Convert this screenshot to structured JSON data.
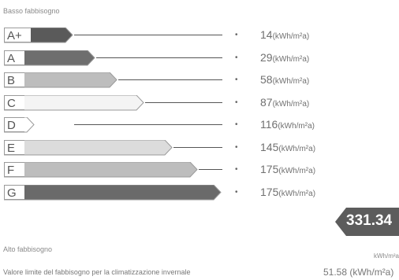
{
  "top_caption": "Basso fabbisogno",
  "bottom_caption": "Alto fabbisogno",
  "classes": [
    {
      "letter": "A+",
      "value": "14",
      "unit": "(kWh/m²a)",
      "fill": "#5a5a5a",
      "bar_end": 92
    },
    {
      "letter": "A",
      "value": "29",
      "unit": "(kWh/m²a)",
      "fill": "#6e6e6e",
      "bar_end": 120
    },
    {
      "letter": "B",
      "value": "58",
      "unit": "(kWh/m²a)",
      "fill": "#bdbdbd",
      "bar_end": 148
    },
    {
      "letter": "C",
      "value": "87",
      "unit": "(kWh/m²a)",
      "fill": "#f4f4f4",
      "bar_end": 182
    },
    {
      "letter": "D",
      "value": "116",
      "unit": "(kWh/m²a)",
      "fill": "#ffffff",
      "bar_end": 42
    },
    {
      "letter": "E",
      "value": "145",
      "unit": "(kWh/m²a)",
      "fill": "#dcdcdc",
      "bar_end": 218
    },
    {
      "letter": "F",
      "value": "175",
      "unit": "(kWh/m²a)",
      "fill": "#bdbdbd",
      "bar_end": 250
    },
    {
      "letter": "G",
      "value": "175",
      "unit": "(kWh/m²a)",
      "fill": "#6a6a6a",
      "bar_end": 280
    }
  ],
  "current": {
    "value": "331.34",
    "unit": "kWh/m²a",
    "color": "#5c5c5c"
  },
  "footer": {
    "label": "Valore limite del fabbisogno per la climatizzazione invernale",
    "value": "51.58 (kWh/m²a)"
  }
}
